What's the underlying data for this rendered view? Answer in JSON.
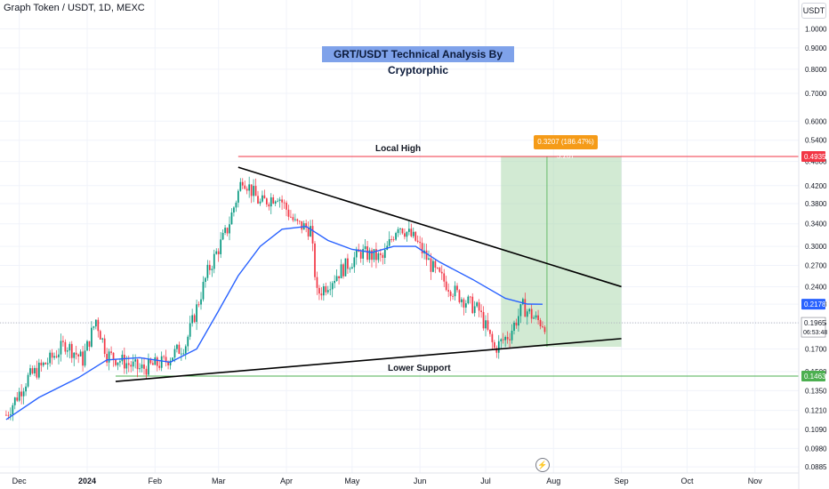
{
  "header": {
    "symbol_line": "Graph Token / USDT, 1D, MEXC"
  },
  "currency_button": "USDT",
  "title": "GRT/USDT Technical Analysis By Cryptorphic",
  "annotations": {
    "local_high": "Local High",
    "lower_support": "Lower Support",
    "measure": "0.3207 (186.47%) 3.207"
  },
  "price_labels": {
    "resistance": "0.4935",
    "ma_value": "0.2178",
    "last_price": "0.1965",
    "countdown": "06:53:48",
    "support": "0.1463"
  },
  "icons": {
    "lightning": "lightning-icon"
  },
  "colors": {
    "up": "#089981",
    "down": "#f23645",
    "ma": "#2962ff",
    "resistance": "#f23645",
    "support": "#4caf50",
    "target_zone": "#a5d6a7"
  },
  "chart_data": {
    "type": "candlestick",
    "scale": "log",
    "y_ticks": [
      "1.0000",
      "0.9000",
      "0.8000",
      "0.7000",
      "0.6000",
      "0.5400",
      "0.4800",
      "0.4200",
      "0.3800",
      "0.3400",
      "0.3000",
      "0.2700",
      "0.2400",
      "0.2178",
      "0.1965",
      "0.1700",
      "0.1500",
      "0.1350",
      "0.1210",
      "0.1090",
      "0.0980",
      "0.0885"
    ],
    "x_ticks": [
      "Dec",
      "2024",
      "Feb",
      "Mar",
      "Apr",
      "May",
      "Jun",
      "Jul",
      "Aug",
      "Sep",
      "Oct",
      "Nov"
    ],
    "trend_path": [
      [
        "2023-11-25",
        0.118
      ],
      [
        "2023-12-05",
        0.145
      ],
      [
        "2023-12-15",
        0.16
      ],
      [
        "2023-12-22",
        0.175
      ],
      [
        "2023-12-30",
        0.16
      ],
      [
        "2024-01-05",
        0.2
      ],
      [
        "2024-01-10",
        0.165
      ],
      [
        "2024-01-18",
        0.158
      ],
      [
        "2024-01-25",
        0.152
      ],
      [
        "2024-02-05",
        0.158
      ],
      [
        "2024-02-15",
        0.175
      ],
      [
        "2024-02-25",
        0.26
      ],
      [
        "2024-03-05",
        0.33
      ],
      [
        "2024-03-12",
        0.44
      ],
      [
        "2024-03-20",
        0.38
      ],
      [
        "2024-03-28",
        0.4
      ],
      [
        "2024-04-05",
        0.34
      ],
      [
        "2024-04-12",
        0.33
      ],
      [
        "2024-04-15",
        0.23
      ],
      [
        "2024-04-25",
        0.26
      ],
      [
        "2024-05-05",
        0.29
      ],
      [
        "2024-05-15",
        0.28
      ],
      [
        "2024-05-22",
        0.34
      ],
      [
        "2024-05-30",
        0.31
      ],
      [
        "2024-06-08",
        0.26
      ],
      [
        "2024-06-18",
        0.23
      ],
      [
        "2024-06-28",
        0.21
      ],
      [
        "2024-07-05",
        0.17
      ],
      [
        "2024-07-12",
        0.185
      ],
      [
        "2024-07-18",
        0.215
      ],
      [
        "2024-07-24",
        0.2
      ],
      [
        "2024-07-28",
        0.195
      ]
    ],
    "moving_average": [
      [
        "2023-11-25",
        0.115
      ],
      [
        "2023-12-10",
        0.13
      ],
      [
        "2023-12-28",
        0.145
      ],
      [
        "2024-01-10",
        0.16
      ],
      [
        "2024-01-25",
        0.162
      ],
      [
        "2024-02-08",
        0.158
      ],
      [
        "2024-02-20",
        0.17
      ],
      [
        "2024-03-01",
        0.21
      ],
      [
        "2024-03-10",
        0.255
      ],
      [
        "2024-03-20",
        0.3
      ],
      [
        "2024-03-30",
        0.33
      ],
      [
        "2024-04-10",
        0.335
      ],
      [
        "2024-04-20",
        0.31
      ],
      [
        "2024-05-01",
        0.295
      ],
      [
        "2024-05-10",
        0.29
      ],
      [
        "2024-05-20",
        0.3
      ],
      [
        "2024-05-30",
        0.3
      ],
      [
        "2024-06-10",
        0.275
      ],
      [
        "2024-06-25",
        0.25
      ],
      [
        "2024-07-10",
        0.225
      ],
      [
        "2024-07-20",
        0.218
      ],
      [
        "2024-07-27",
        0.2178
      ]
    ],
    "trendlines": [
      {
        "name": "upper",
        "from": [
          "2024-03-10",
          0.465
        ],
        "to": [
          "2024-09-01",
          0.24
        ]
      },
      {
        "name": "lower",
        "from": [
          "2024-01-14",
          0.142
        ],
        "to": [
          "2024-09-01",
          0.18
        ]
      }
    ],
    "levels": {
      "resistance": 0.4935,
      "support": 0.1463
    },
    "target_zone": {
      "x_start": "2024-07-08",
      "x_end": "2024-09-01",
      "y_low": 0.172,
      "y_high": 0.4935
    },
    "current_price": 0.1965
  }
}
